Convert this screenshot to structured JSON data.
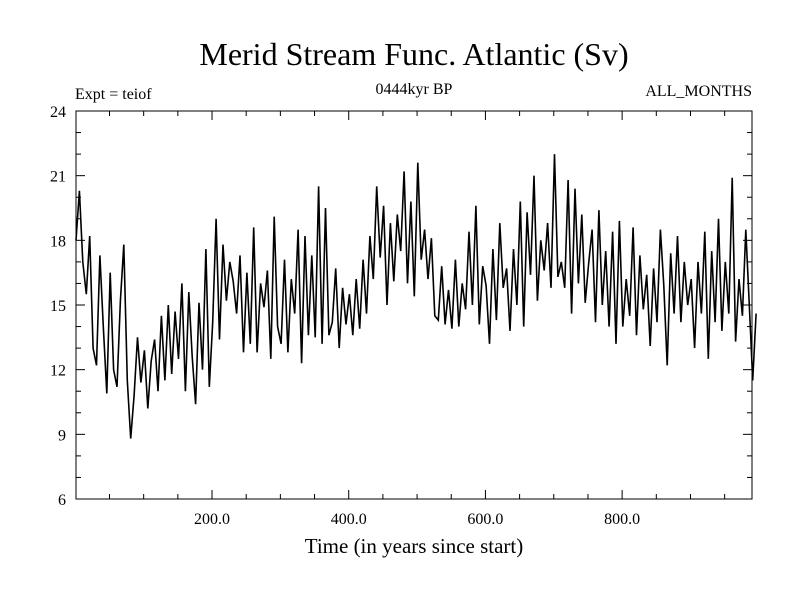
{
  "chart_data": {
    "type": "line",
    "title": "Merid Stream Func. Atlantic (Sv)",
    "subtitle_left": "Expt = teiof",
    "subtitle_center": "0444kyr BP",
    "subtitle_right": "ALL_MONTHS",
    "xlabel": "Time (in years since start)",
    "ylabel": "",
    "xlim": [
      1,
      990
    ],
    "ylim": [
      6,
      24
    ],
    "x_ticks": [
      200,
      400,
      600,
      800
    ],
    "x_tick_labels": [
      "200.0",
      "400.0",
      "600.0",
      "800.0"
    ],
    "y_ticks": [
      6,
      9,
      12,
      15,
      18,
      21,
      24
    ],
    "y_tick_labels": [
      "6",
      "9",
      "12",
      "15",
      "18",
      "21",
      "24"
    ],
    "grid": false,
    "series": [
      {
        "name": "Merid Stream Func. Atlantic",
        "x_start": 1,
        "x_step": 5,
        "values": [
          18.0,
          20.3,
          17.0,
          15.5,
          18.2,
          13.0,
          12.2,
          17.3,
          14.0,
          10.9,
          16.5,
          12.0,
          11.2,
          15.2,
          17.8,
          11.5,
          8.8,
          10.8,
          13.5,
          11.4,
          12.9,
          10.2,
          12.4,
          13.4,
          11.0,
          14.5,
          11.5,
          15.0,
          11.8,
          14.7,
          12.5,
          16.0,
          11.0,
          15.6,
          12.6,
          10.4,
          15.1,
          12.0,
          17.6,
          11.2,
          14.2,
          19.0,
          13.4,
          17.8,
          15.2,
          17.0,
          16.1,
          14.6,
          17.3,
          12.8,
          16.5,
          13.2,
          18.6,
          12.8,
          16.0,
          14.9,
          16.6,
          12.5,
          19.1,
          14.0,
          13.2,
          17.1,
          12.8,
          16.2,
          14.6,
          18.5,
          12.3,
          18.2,
          13.6,
          17.3,
          13.5,
          20.5,
          13.2,
          19.5,
          13.6,
          14.2,
          16.7,
          13.0,
          15.8,
          14.1,
          15.5,
          13.6,
          16.2,
          13.9,
          17.1,
          14.6,
          18.2,
          16.2,
          20.5,
          17.2,
          19.6,
          15.0,
          18.8,
          16.1,
          19.2,
          17.5,
          21.2,
          16.0,
          19.8,
          15.4,
          21.6,
          17.1,
          18.5,
          16.2,
          18.1,
          14.5,
          14.3,
          16.8,
          14.1,
          15.7,
          13.9,
          17.1,
          14.0,
          16.0,
          14.8,
          18.4,
          15.0,
          19.6,
          14.1,
          16.8,
          15.9,
          13.2,
          17.6,
          14.3,
          18.8,
          15.8,
          16.7,
          13.8,
          17.6,
          15.0,
          19.8,
          14.0,
          19.3,
          16.4,
          21.0,
          15.2,
          18.0,
          16.6,
          18.8,
          15.8,
          22.0,
          16.3,
          17.0,
          15.8,
          20.8,
          14.6,
          20.4,
          16.0,
          19.2,
          15.1,
          16.9,
          18.5,
          14.2,
          19.4,
          15.0,
          17.5,
          14.0,
          18.4,
          13.2,
          18.9,
          14.0,
          16.2,
          14.5,
          18.6,
          13.6,
          17.3,
          14.8,
          16.4,
          13.1,
          16.7,
          14.2,
          18.5,
          15.9,
          12.2,
          17.4,
          14.6,
          18.2,
          14.2,
          17.0,
          15.0,
          16.2,
          13.0,
          17.0,
          14.6,
          18.4,
          12.5,
          17.5,
          14.2,
          19.0,
          13.8,
          17.0,
          14.6,
          20.9,
          13.3,
          16.2,
          14.5,
          18.5,
          15.0,
          11.5,
          14.6
        ]
      }
    ]
  }
}
